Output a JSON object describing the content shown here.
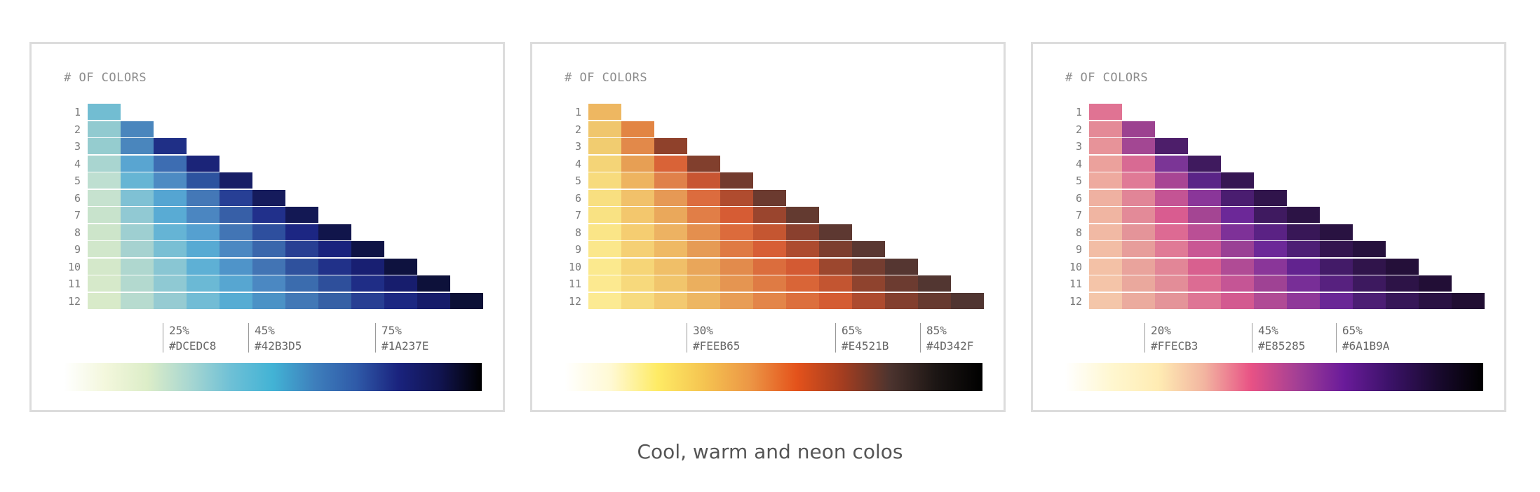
{
  "caption": "Cool, warm and neon colos",
  "panels": [
    {
      "heading": "# OF COLORS",
      "ramp_colors": [
        "#ffffff",
        "#f3f7dc",
        "#dcedc8",
        "#a9d7d1",
        "#6ec0d6",
        "#42b3d5",
        "#3e7fbc",
        "#2f5aa8",
        "#1a237e",
        "#111450",
        "#000000"
      ],
      "stops": [
        {
          "percent": "25%",
          "hex": "#DCEDC8"
        },
        {
          "percent": "45%",
          "hex": "#42B3D5"
        },
        {
          "percent": "75%",
          "hex": "#1A237E"
        }
      ],
      "rows": [
        {
          "label": "1",
          "colors": [
            "#72bdd2"
          ]
        },
        {
          "label": "2",
          "colors": [
            "#91cad0",
            "#4a86bd"
          ]
        },
        {
          "label": "3",
          "colors": [
            "#95cccf",
            "#4a86bd",
            "#1f2f86"
          ]
        },
        {
          "label": "4",
          "colors": [
            "#a9d5d0",
            "#59a5d1",
            "#3d6db2",
            "#1b2478"
          ]
        },
        {
          "label": "5",
          "colors": [
            "#bedfd1",
            "#66b5d4",
            "#4d8bc3",
            "#2d539f",
            "#171e66"
          ]
        },
        {
          "label": "6",
          "colors": [
            "#c6e2cf",
            "#7fc1d4",
            "#55a5d2",
            "#4478b7",
            "#273f95",
            "#151b5c"
          ]
        },
        {
          "label": "7",
          "colors": [
            "#c8e3cc",
            "#91c9d3",
            "#59abd4",
            "#4b86c1",
            "#375fa7",
            "#21308b",
            "#131854"
          ]
        },
        {
          "label": "8",
          "colors": [
            "#cde5ca",
            "#9ecfd1",
            "#65b4d5",
            "#55a0d0",
            "#4275b5",
            "#2e4f9e",
            "#1c2683",
            "#11154b"
          ]
        },
        {
          "label": "9",
          "colors": [
            "#d1e7cb",
            "#a6d2d0",
            "#79bfd4",
            "#57aad3",
            "#4b88c2",
            "#3a67ac",
            "#283f93",
            "#1a237d",
            "#0f1345"
          ]
        },
        {
          "label": "10",
          "colors": [
            "#d4e8ca",
            "#afd7cf",
            "#89c6d3",
            "#5eb0d5",
            "#4f94c9",
            "#4274b4",
            "#2f519d",
            "#213189",
            "#181f72",
            "#0e123f"
          ]
        },
        {
          "label": "11",
          "colors": [
            "#d6e9ca",
            "#b3d9cf",
            "#8fc9d3",
            "#6bb9d5",
            "#57a6d1",
            "#4b88c2",
            "#3b6cae",
            "#2e4f9b",
            "#1f2d86",
            "#171d6d",
            "#0d113a"
          ]
        },
        {
          "label": "12",
          "colors": [
            "#d8eac9",
            "#b7dbcf",
            "#96cbd2",
            "#72bcd5",
            "#57acd3",
            "#4b92c6",
            "#4278b6",
            "#3660a5",
            "#283f93",
            "#1c2882",
            "#161c6a",
            "#0c1036"
          ]
        }
      ]
    },
    {
      "heading": "# OF COLORS",
      "ramp_colors": [
        "#ffffff",
        "#fff9d4",
        "#feeb65",
        "#f5c451",
        "#ec9645",
        "#e4521b",
        "#a33d20",
        "#4d342f",
        "#1c1614",
        "#000000"
      ],
      "stops": [
        {
          "percent": "30%",
          "hex": "#FEEB65"
        },
        {
          "percent": "65%",
          "hex": "#E4521B"
        },
        {
          "percent": "85%",
          "hex": "#4D342F"
        }
      ],
      "rows": [
        {
          "label": "1",
          "colors": [
            "#eeb761"
          ]
        },
        {
          "label": "2",
          "colors": [
            "#f0c66d",
            "#e28543"
          ]
        },
        {
          "label": "3",
          "colors": [
            "#f1cc70",
            "#e2894a",
            "#8f412b"
          ]
        },
        {
          "label": "4",
          "colors": [
            "#f4d477",
            "#e79f54",
            "#d96337",
            "#813f2d"
          ]
        },
        {
          "label": "5",
          "colors": [
            "#f7db7d",
            "#eeb460",
            "#e0814a",
            "#c85532",
            "#733b2e"
          ]
        },
        {
          "label": "6",
          "colors": [
            "#f8df80",
            "#f1c16a",
            "#e69955",
            "#dc6c3e",
            "#b04c2f",
            "#6b3a2f"
          ]
        },
        {
          "label": "7",
          "colors": [
            "#f9e283",
            "#f3c76d",
            "#eaa85b",
            "#e17e47",
            "#d65c34",
            "#9a452e",
            "#633a30"
          ]
        },
        {
          "label": "8",
          "colors": [
            "#fae587",
            "#f5cd71",
            "#edb262",
            "#e48f4e",
            "#dc6b3c",
            "#c55631",
            "#8a402e",
            "#5d3831"
          ]
        },
        {
          "label": "9",
          "colors": [
            "#fbe78b",
            "#f5d074",
            "#efb964",
            "#e69b55",
            "#df7a43",
            "#d75e36",
            "#ad4b2f",
            "#7c3e2f",
            "#593731"
          ]
        },
        {
          "label": "10",
          "colors": [
            "#fbe98e",
            "#f6d577",
            "#f0bf68",
            "#e9a65a",
            "#e28b4c",
            "#db6d3d",
            "#d35a33",
            "#9c472e",
            "#743d30",
            "#553631"
          ]
        },
        {
          "label": "11",
          "colors": [
            "#fce990",
            "#f7d97c",
            "#f1c56c",
            "#ebaf5e",
            "#e59551",
            "#df7b44",
            "#d96537",
            "#c35531",
            "#8f432e",
            "#6c3b30",
            "#523631"
          ]
        },
        {
          "label": "12",
          "colors": [
            "#fcea92",
            "#f7db7f",
            "#f3c970",
            "#edb662",
            "#e89d56",
            "#e38549",
            "#dc6f3d",
            "#d45c33",
            "#ad4b2f",
            "#833f2e",
            "#663a30",
            "#503531"
          ]
        }
      ]
    },
    {
      "heading": "# OF COLORS",
      "ramp_colors": [
        "#ffffff",
        "#fff7d0",
        "#ffecb3",
        "#f2b4a0",
        "#e85285",
        "#a33f95",
        "#6a1b9a",
        "#3b1268",
        "#1a0a30",
        "#000000"
      ],
      "stops": [
        {
          "percent": "20%",
          "hex": "#FFECB3"
        },
        {
          "percent": "45%",
          "hex": "#E85285"
        },
        {
          "percent": "65%",
          "hex": "#6A1B9A"
        }
      ],
      "rows": [
        {
          "label": "1",
          "colors": [
            "#e07393"
          ]
        },
        {
          "label": "2",
          "colors": [
            "#e48a97",
            "#9c4290"
          ]
        },
        {
          "label": "3",
          "colors": [
            "#e79399",
            "#a34793",
            "#4d1e6a"
          ]
        },
        {
          "label": "4",
          "colors": [
            "#eba19c",
            "#d86a93",
            "#7b3596",
            "#3f1a5e"
          ]
        },
        {
          "label": "5",
          "colors": [
            "#eeaa9f",
            "#e07a96",
            "#a84594",
            "#5a2487",
            "#361653"
          ]
        },
        {
          "label": "6",
          "colors": [
            "#efb1a1",
            "#e18597",
            "#c45494",
            "#8a3699",
            "#4a1d70",
            "#30144b"
          ]
        },
        {
          "label": "7",
          "colors": [
            "#f0b5a2",
            "#e38a98",
            "#d95c90",
            "#a44593",
            "#6c2898",
            "#3f1a60",
            "#2c1345"
          ]
        },
        {
          "label": "8",
          "colors": [
            "#f1b9a4",
            "#e49499",
            "#dd6a93",
            "#ba4f95",
            "#7e3198",
            "#5a2284",
            "#381757",
            "#291241"
          ]
        },
        {
          "label": "9",
          "colors": [
            "#f2bda5",
            "#e79d9b",
            "#e07a96",
            "#c95794",
            "#9a4095",
            "#6c2898",
            "#4d1e75",
            "#33154f",
            "#26113d"
          ]
        },
        {
          "label": "10",
          "colors": [
            "#f3c1a6",
            "#e9a39c",
            "#e28697",
            "#d8608f",
            "#b04b95",
            "#8a3699",
            "#62238f",
            "#431b68",
            "#30144b",
            "#240f39"
          ]
        },
        {
          "label": "11",
          "colors": [
            "#f4c4a8",
            "#eaa89d",
            "#e38d98",
            "#dc6c93",
            "#c55595",
            "#9f4294",
            "#782e97",
            "#57217f",
            "#3d195f",
            "#2d1347",
            "#220e36"
          ]
        },
        {
          "label": "12",
          "colors": [
            "#f4c6a9",
            "#ebab9e",
            "#e49499",
            "#de7595",
            "#d35a90",
            "#b04b95",
            "#8f3899",
            "#6a2796",
            "#4c1e74",
            "#371758",
            "#2a1243",
            "#210e33"
          ]
        }
      ]
    }
  ]
}
